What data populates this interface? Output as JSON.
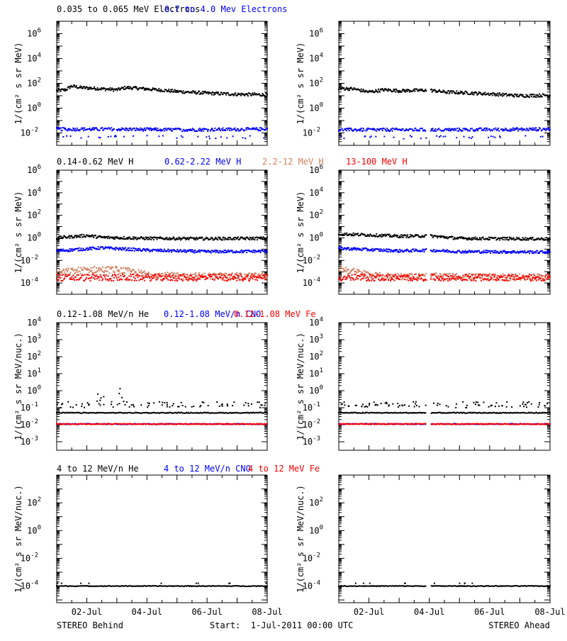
{
  "colors": {
    "black": "#000000",
    "blue": "#0000ff",
    "tan": "#d08060",
    "red": "#ff0000"
  },
  "footer": {
    "left_label": "STEREO Behind",
    "center_label": "Start:  1-Jul-2011 00:00 UTC",
    "right_label": "STEREO Ahead"
  },
  "x_axis": {
    "range_days": [
      0,
      7
    ],
    "ticks": [
      1,
      3,
      5,
      7
    ],
    "tick_labels": [
      "02-Jul",
      "04-Jul",
      "06-Jul",
      "08-Jul"
    ]
  },
  "chart_data": [
    {
      "type": "scatter",
      "row_title": [
        {
          "text": "0.035 to 0.065 MeV Electrons",
          "color": "black"
        },
        {
          "text": "0.7 to 4.0 Mev Electrons",
          "color": "blue"
        }
      ],
      "ylabel": "1/(cm² s sr MeV)",
      "ylog": true,
      "ylim_exp": [
        -3,
        7
      ],
      "yticks_exp": [
        -2,
        0,
        2,
        4,
        6
      ],
      "series": [
        {
          "color": "black",
          "behind": [
            [
              0,
              25
            ],
            [
              0.3,
              30
            ],
            [
              0.5,
              60
            ],
            [
              0.8,
              45
            ],
            [
              1.2,
              40
            ],
            [
              2,
              30
            ],
            [
              2.3,
              45
            ],
            [
              2.7,
              40
            ],
            [
              3.5,
              28
            ],
            [
              4,
              22
            ],
            [
              5,
              16
            ],
            [
              6,
              13
            ],
            [
              7,
              12
            ]
          ],
          "ahead": [
            [
              0,
              40
            ],
            [
              0.5,
              35
            ],
            [
              1,
              20
            ],
            [
              1.5,
              30
            ],
            [
              2,
              25
            ],
            [
              3,
              28
            ],
            [
              3.5,
              20
            ],
            [
              4,
              18
            ],
            [
              5,
              14
            ],
            [
              6,
              10
            ],
            [
              7,
              11
            ]
          ]
        },
        {
          "color": "blue",
          "behind": [
            [
              0,
              0.02
            ],
            [
              2,
              0.02
            ],
            [
              4,
              0.018
            ],
            [
              7,
              0.02
            ]
          ],
          "ahead": [
            [
              0,
              0.018
            ],
            [
              3.5,
              0.018
            ],
            [
              7,
              0.02
            ]
          ]
        }
      ],
      "gap_ahead": [
        2.9,
        3.05
      ]
    },
    {
      "type": "scatter",
      "row_title": [
        {
          "text": "0.14-0.62 MeV H",
          "color": "black"
        },
        {
          "text": "0.62-2.22 MeV H",
          "color": "blue"
        },
        {
          "text": "2.2-12 MeV H",
          "color": "tan"
        },
        {
          "text": "13-100 MeV H",
          "color": "red"
        }
      ],
      "ylabel": "1/(cm² s sr MeV)",
      "ylog": true,
      "ylim_exp": [
        -5,
        6
      ],
      "yticks_exp": [
        -4,
        -2,
        0,
        2,
        4,
        6
      ],
      "series": [
        {
          "color": "black",
          "behind": [
            [
              0,
              1.0
            ],
            [
              1,
              1.6
            ],
            [
              1.5,
              1.1
            ],
            [
              3,
              0.9
            ],
            [
              5,
              0.85
            ],
            [
              7,
              0.9
            ]
          ],
          "ahead": [
            [
              0,
              2.2
            ],
            [
              1,
              1.8
            ],
            [
              2,
              1.4
            ],
            [
              3,
              1.5
            ],
            [
              4,
              0.9
            ],
            [
              7,
              0.8
            ]
          ]
        },
        {
          "color": "blue",
          "behind": [
            [
              0,
              0.07
            ],
            [
              1.5,
              0.13
            ],
            [
              3,
              0.08
            ],
            [
              5,
              0.06
            ],
            [
              7,
              0.065
            ]
          ],
          "ahead": [
            [
              0,
              0.12
            ],
            [
              1,
              0.09
            ],
            [
              2,
              0.07
            ],
            [
              3,
              0.08
            ],
            [
              4,
              0.06
            ],
            [
              7,
              0.055
            ]
          ]
        },
        {
          "color": "tan",
          "behind": [
            [
              0,
              0.0008
            ],
            [
              1,
              0.0015
            ],
            [
              2,
              0.0015
            ],
            [
              3,
              0.0006
            ],
            [
              4,
              0.0004
            ],
            [
              7,
              0.0004
            ]
          ],
          "ahead": [
            [
              0,
              0.002
            ],
            [
              0.7,
              0.0008
            ],
            [
              1.3,
              0.0004
            ],
            [
              7,
              0.0003
            ]
          ]
        },
        {
          "color": "red",
          "behind": [
            [
              0,
              0.0003
            ],
            [
              7,
              0.0003
            ]
          ],
          "ahead": [
            [
              0,
              0.0003
            ],
            [
              7,
              0.0003
            ]
          ]
        }
      ],
      "gap_ahead": [
        2.9,
        3.05
      ]
    },
    {
      "type": "scatter",
      "row_title": [
        {
          "text": "0.12-1.08 MeV/n He",
          "color": "black"
        },
        {
          "text": "0.12-1.08 MeV/n CNO",
          "color": "blue"
        },
        {
          "text": "0.12-1.08 MeV Fe",
          "color": "red"
        }
      ],
      "ylabel": "1/(cm² s sr MeV/nuc.)",
      "ylog": true,
      "ylim_exp": [
        -3.5,
        4
      ],
      "yticks_exp": [
        -3,
        -2,
        -1,
        0,
        1,
        2,
        3,
        4
      ],
      "series": [
        {
          "color": "black",
          "behind": [
            [
              0,
              0.05
            ],
            [
              7,
              0.05
            ]
          ],
          "ahead": [
            [
              0,
              0.05
            ],
            [
              7,
              0.05
            ]
          ]
        },
        {
          "color": "blue",
          "behind": [
            [
              0,
              0.011
            ],
            [
              7,
              0.011
            ]
          ],
          "ahead": [
            [
              0,
              0.011
            ],
            [
              7,
              0.011
            ]
          ]
        },
        {
          "color": "red",
          "behind": [
            [
              0,
              0.011
            ],
            [
              7,
              0.011
            ]
          ],
          "ahead": [
            [
              0,
              0.011
            ],
            [
              7,
              0.011
            ]
          ]
        }
      ],
      "gap_ahead": [
        2.9,
        3.05
      ]
    },
    {
      "type": "scatter",
      "row_title": [
        {
          "text": "4 to 12 MeV/n He",
          "color": "black"
        },
        {
          "text": "4 to 12 MeV/n CNO",
          "color": "blue"
        },
        {
          "text": "4 to 12 MeV Fe",
          "color": "red"
        }
      ],
      "ylabel": "1/(cm² s sr MeV/nuc.)",
      "ylog": true,
      "ylim_exp": [
        -5.2,
        4
      ],
      "yticks_exp": [
        -4,
        -2,
        0,
        2
      ],
      "series": [
        {
          "color": "black",
          "behind": [
            [
              0,
              0.0001
            ],
            [
              7,
              0.0001
            ]
          ],
          "ahead": [
            [
              0,
              0.0001
            ],
            [
              7,
              0.0001
            ]
          ]
        }
      ],
      "gap_ahead": [
        2.9,
        3.05
      ]
    }
  ]
}
